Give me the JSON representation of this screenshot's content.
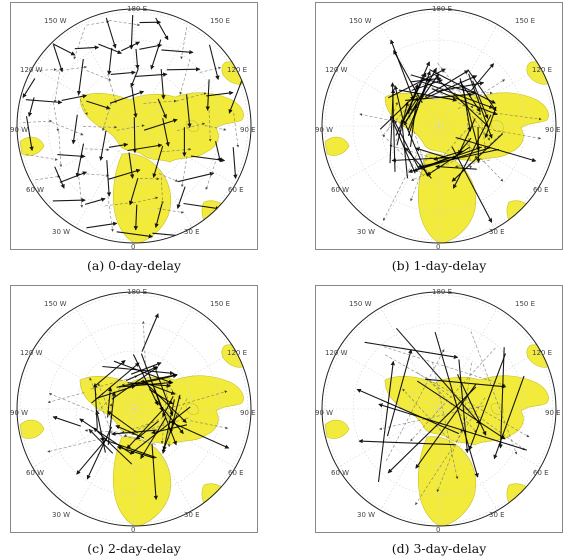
{
  "colors": {
    "land": "#f2eb3c",
    "land_edge": "#c9c020",
    "grid": "#d4d4d4",
    "link": "#000000",
    "frame": "#888888"
  },
  "graticule_labels": [
    "180 E",
    "150 W",
    "150 E",
    "120 W",
    "120 E",
    "90 W",
    "90 E",
    "60 W",
    "60 E",
    "30 W",
    "30 E",
    "0"
  ],
  "panels": [
    {
      "caption": "(a) 0-day-delay",
      "pattern": "lattice"
    },
    {
      "caption": "(b) 1-day-delay",
      "pattern": "ring"
    },
    {
      "caption": "(c) 2-day-delay",
      "pattern": "ring-mid"
    },
    {
      "caption": "(d) 3-day-delay",
      "pattern": "sparse"
    }
  ]
}
